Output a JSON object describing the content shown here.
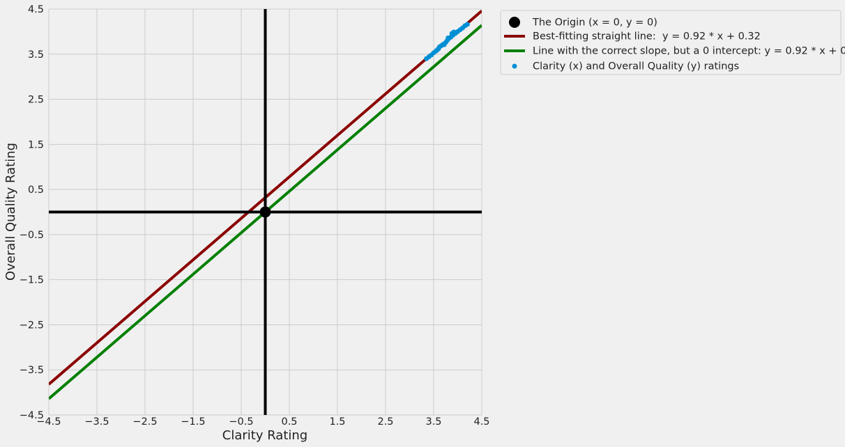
{
  "chart_data": {
    "type": "scatter",
    "xlabel": "Clarity Rating",
    "ylabel": "Overall Quality Rating",
    "xlim": [
      -4.5,
      4.5
    ],
    "ylim": [
      -4.5,
      4.5
    ],
    "xticks": [
      -4.5,
      -3.5,
      -2.5,
      -1.5,
      -0.5,
      0.5,
      1.5,
      2.5,
      3.5,
      4.5
    ],
    "yticks": [
      -4.5,
      -3.5,
      -2.5,
      -1.5,
      -0.5,
      0.5,
      1.5,
      2.5,
      3.5,
      4.5
    ],
    "xtick_labels": [
      "−4.5",
      "−3.5",
      "−2.5",
      "−1.5",
      "−0.5",
      "0.5",
      "1.5",
      "2.5",
      "3.5",
      "4.5"
    ],
    "ytick_labels": [
      "−4.5",
      "−3.5",
      "−2.5",
      "−1.5",
      "−0.5",
      "0.5",
      "1.5",
      "2.5",
      "3.5",
      "4.5"
    ],
    "grid": true,
    "legend_position": "outside-top-right",
    "axes_lines": {
      "x": 0,
      "y": 0,
      "color": "#000000"
    },
    "origin": {
      "label": "The Origin (x = 0, y = 0)",
      "x": 0,
      "y": 0,
      "color": "#000000"
    },
    "lines": [
      {
        "name": "Best-fitting straight line:  y = 0.92 * x + 0.32",
        "slope": 0.92,
        "intercept": 0.32,
        "color": "#8b0000"
      },
      {
        "name": "Line with the correct slope, but a 0 intercept: y = 0.92 * x + 0",
        "slope": 0.92,
        "intercept": 0,
        "color": "#008000"
      }
    ],
    "series": [
      {
        "name": "Clarity (x) and Overall Quality (y) ratings",
        "color": "#008fd5",
        "points": [
          [
            3.35,
            3.4
          ],
          [
            3.4,
            3.44
          ],
          [
            3.45,
            3.48
          ],
          [
            3.5,
            3.53
          ],
          [
            3.55,
            3.57
          ],
          [
            3.6,
            3.62
          ],
          [
            3.62,
            3.66
          ],
          [
            3.66,
            3.69
          ],
          [
            3.7,
            3.72
          ],
          [
            3.75,
            3.76
          ],
          [
            3.78,
            3.8
          ],
          [
            3.82,
            3.85
          ],
          [
            3.86,
            3.88
          ],
          [
            3.9,
            3.92
          ],
          [
            3.95,
            3.96
          ],
          [
            4.0,
            4.0
          ],
          [
            4.05,
            4.04
          ],
          [
            4.1,
            4.08
          ],
          [
            4.15,
            4.13
          ],
          [
            4.2,
            4.16
          ],
          [
            3.8,
            3.86
          ],
          [
            3.88,
            3.96
          ],
          [
            3.92,
            3.99
          ],
          [
            3.58,
            3.6
          ],
          [
            3.72,
            3.71
          ]
        ]
      }
    ]
  }
}
